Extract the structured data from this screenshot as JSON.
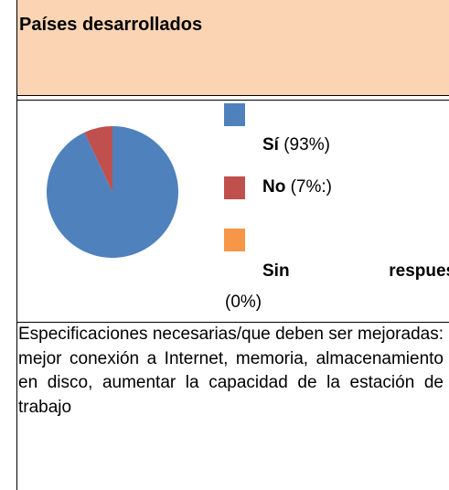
{
  "header": {
    "title": "Países desarrollados"
  },
  "chart_data": {
    "type": "pie",
    "categories": [
      "Sí",
      "No",
      "Sin respuesta"
    ],
    "values": [
      93,
      7,
      0
    ],
    "value_labels": [
      "(93%)",
      "(7%:)",
      "(0%)"
    ],
    "colors": [
      "#4f81bd",
      "#c0504d",
      "#f79646"
    ]
  },
  "description": "Especificaciones necesarias/que deben ser mejoradas: mejor conexión a Internet, memoria, almacenamiento en disco, aumentar la capacidad de la estación de trabajo"
}
